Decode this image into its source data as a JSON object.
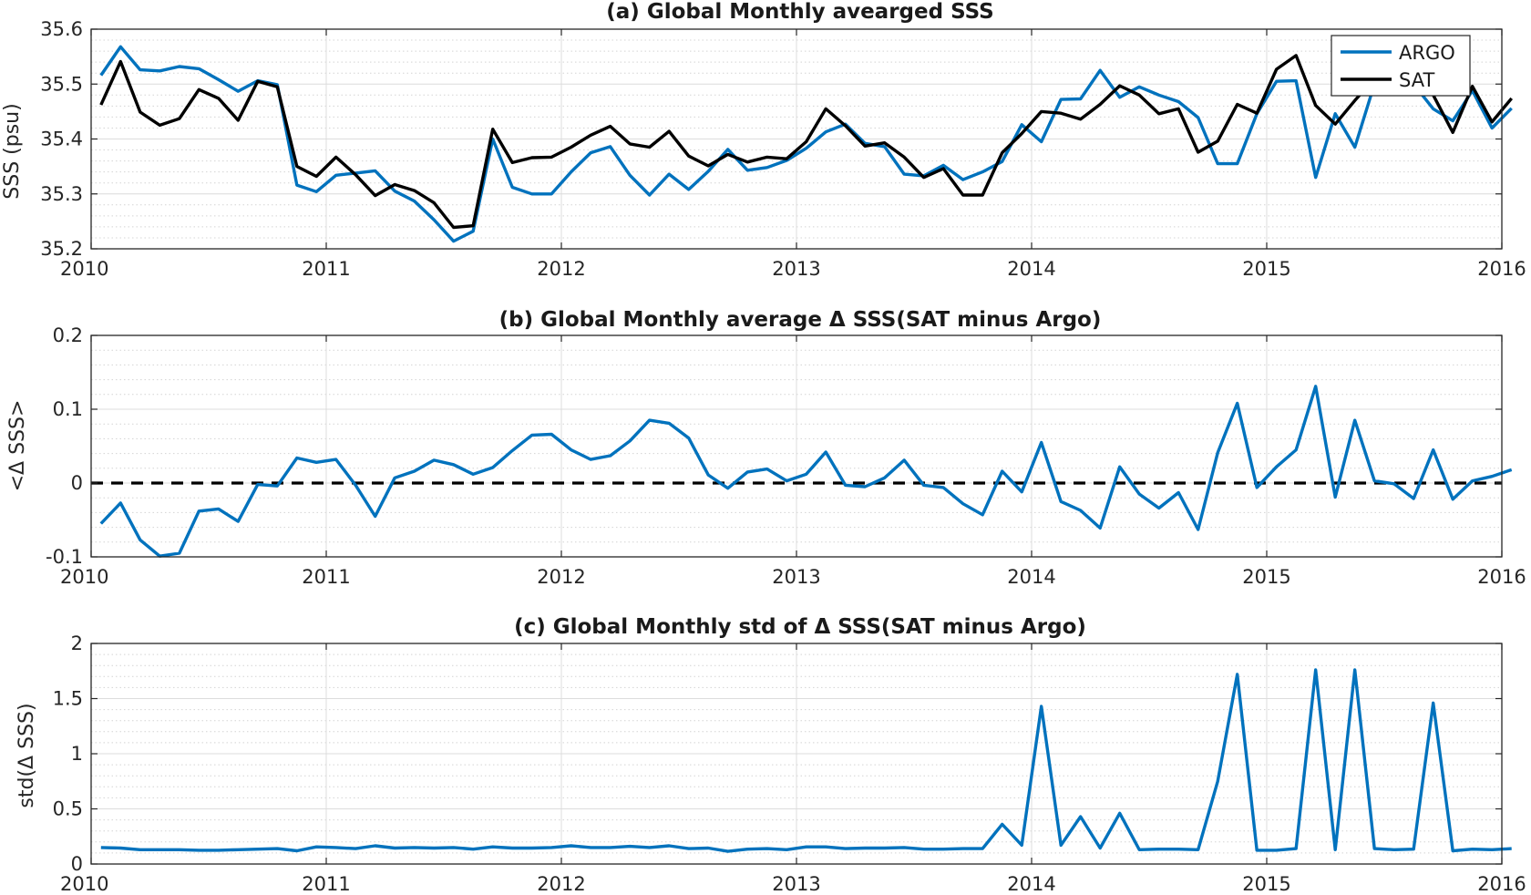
{
  "chart_data": [
    {
      "type": "line",
      "title": "(a) Global Monthly avearged SSS",
      "xlabel": "",
      "ylabel": "SSS (psu)",
      "xlim": [
        2010,
        2016
      ],
      "ylim": [
        35.2,
        35.6
      ],
      "xticks": [
        2010,
        2011,
        2012,
        2013,
        2014,
        2015,
        2016
      ],
      "xtick_labels": [
        "2010",
        "2011",
        "2012",
        "2013",
        "2014",
        "2015",
        "2016"
      ],
      "yticks": [
        35.2,
        35.3,
        35.4,
        35.5,
        35.6
      ],
      "ytick_labels": [
        "35.2",
        "35.3",
        "35.4",
        "35.5",
        "35.6"
      ],
      "grid": true,
      "legend": "top-right",
      "x_start": 2010.0417,
      "x_step": 0.08333,
      "series": [
        {
          "name": "ARGO",
          "color": "#0072BD",
          "values": [
            35.516,
            35.568,
            35.526,
            35.524,
            35.532,
            35.528,
            35.508,
            35.487,
            35.506,
            35.499,
            35.316,
            35.304,
            35.334,
            35.338,
            35.342,
            35.305,
            35.287,
            35.253,
            35.214,
            35.232,
            35.4,
            35.312,
            35.3,
            35.3,
            35.34,
            35.375,
            35.386,
            35.334,
            35.298,
            35.336,
            35.308,
            35.341,
            35.381,
            35.343,
            35.348,
            35.361,
            35.383,
            35.413,
            35.427,
            35.392,
            35.386,
            35.336,
            35.333,
            35.352,
            35.326,
            35.34,
            35.359,
            35.426,
            35.395,
            35.472,
            35.473,
            35.525,
            35.476,
            35.495,
            35.48,
            35.468,
            35.439,
            35.355,
            35.355,
            35.446,
            35.505,
            35.506,
            35.33,
            35.446,
            35.385,
            35.5,
            35.505,
            35.5,
            35.455,
            35.433,
            35.488,
            35.42,
            35.456
          ]
        },
        {
          "name": "SAT",
          "color": "#000000",
          "values": [
            35.462,
            35.541,
            35.449,
            35.425,
            35.437,
            35.49,
            35.474,
            35.434,
            35.505,
            35.495,
            35.35,
            35.332,
            35.367,
            35.335,
            35.297,
            35.317,
            35.306,
            35.284,
            35.239,
            35.242,
            35.418,
            35.357,
            35.366,
            35.367,
            35.385,
            35.407,
            35.423,
            35.391,
            35.385,
            35.414,
            35.369,
            35.351,
            35.372,
            35.358,
            35.367,
            35.364,
            35.395,
            35.455,
            35.424,
            35.387,
            35.393,
            35.367,
            35.33,
            35.346,
            35.298,
            35.298,
            35.375,
            35.41,
            35.45,
            35.447,
            35.436,
            35.463,
            35.497,
            35.48,
            35.446,
            35.455,
            35.376,
            35.396,
            35.463,
            35.447,
            35.527,
            35.552,
            35.461,
            35.427,
            35.47,
            35.51,
            35.51,
            35.51,
            35.48,
            35.412,
            35.496,
            35.431,
            35.474
          ]
        }
      ]
    },
    {
      "type": "line",
      "title": "(b) Global Monthly average Δ SSS(SAT minus Argo)",
      "xlabel": "",
      "ylabel": "<Δ SSS>",
      "xlim": [
        2010,
        2016
      ],
      "ylim": [
        -0.1,
        0.2
      ],
      "xticks": [
        2010,
        2011,
        2012,
        2013,
        2014,
        2015,
        2016
      ],
      "xtick_labels": [
        "2010",
        "2011",
        "2012",
        "2013",
        "2014",
        "2015",
        "2016"
      ],
      "yticks": [
        -0.1,
        0,
        0.1,
        0.2
      ],
      "ytick_labels": [
        "-0.1",
        "0",
        "0.1",
        "0.2"
      ],
      "grid": true,
      "reference_line": {
        "y": 0,
        "style": "dashed",
        "color": "#000000"
      },
      "x_start": 2010.0417,
      "x_step": 0.08333,
      "series": [
        {
          "color": "#0072BD",
          "values": [
            -0.055,
            -0.027,
            -0.077,
            -0.099,
            -0.095,
            -0.038,
            -0.035,
            -0.052,
            -0.002,
            -0.004,
            0.034,
            0.028,
            0.032,
            -0.003,
            -0.045,
            0.007,
            0.016,
            0.031,
            0.025,
            0.012,
            0.021,
            0.044,
            0.065,
            0.066,
            0.045,
            0.032,
            0.037,
            0.057,
            0.085,
            0.081,
            0.061,
            0.011,
            -0.007,
            0.015,
            0.019,
            0.003,
            0.012,
            0.042,
            -0.003,
            -0.005,
            0.007,
            0.031,
            -0.003,
            -0.006,
            -0.028,
            -0.043,
            0.016,
            -0.012,
            0.055,
            -0.025,
            -0.037,
            -0.061,
            0.022,
            -0.015,
            -0.034,
            -0.013,
            -0.063,
            0.041,
            0.108,
            -0.006,
            0.022,
            0.045,
            0.131,
            -0.019,
            0.085,
            0.003,
            -0.001,
            -0.021,
            0.045,
            -0.022,
            0.003,
            0.009,
            0.018
          ]
        }
      ]
    },
    {
      "type": "line",
      "title": "(c) Global Monthly std of Δ SSS(SAT minus Argo)",
      "xlabel": "",
      "ylabel": "std(Δ SSS)",
      "xlim": [
        2010,
        2016
      ],
      "ylim": [
        0,
        2
      ],
      "xticks": [
        2010,
        2011,
        2012,
        2013,
        2014,
        2015,
        2016
      ],
      "xtick_labels": [
        "2010",
        "2011",
        "2012",
        "2013",
        "2014",
        "2015",
        "2016"
      ],
      "yticks": [
        0,
        0.5,
        1,
        1.5,
        2
      ],
      "ytick_labels": [
        "0",
        "0.5",
        "1",
        "1.5",
        "2"
      ],
      "grid": true,
      "x_start": 2010.0417,
      "x_step": 0.08333,
      "series": [
        {
          "color": "#0072BD",
          "values": [
            0.15,
            0.145,
            0.13,
            0.13,
            0.13,
            0.125,
            0.125,
            0.13,
            0.135,
            0.14,
            0.12,
            0.155,
            0.15,
            0.14,
            0.165,
            0.145,
            0.15,
            0.145,
            0.15,
            0.135,
            0.155,
            0.145,
            0.145,
            0.15,
            0.165,
            0.15,
            0.15,
            0.16,
            0.15,
            0.165,
            0.14,
            0.145,
            0.115,
            0.135,
            0.14,
            0.13,
            0.155,
            0.155,
            0.14,
            0.145,
            0.145,
            0.15,
            0.135,
            0.135,
            0.14,
            0.14,
            0.36,
            0.17,
            1.43,
            0.17,
            0.43,
            0.145,
            0.46,
            0.13,
            0.135,
            0.135,
            0.13,
            0.75,
            1.72,
            0.125,
            0.125,
            0.14,
            1.76,
            0.13,
            1.76,
            0.14,
            0.13,
            0.135,
            1.46,
            0.12,
            0.135,
            0.13,
            0.14
          ]
        }
      ]
    }
  ]
}
